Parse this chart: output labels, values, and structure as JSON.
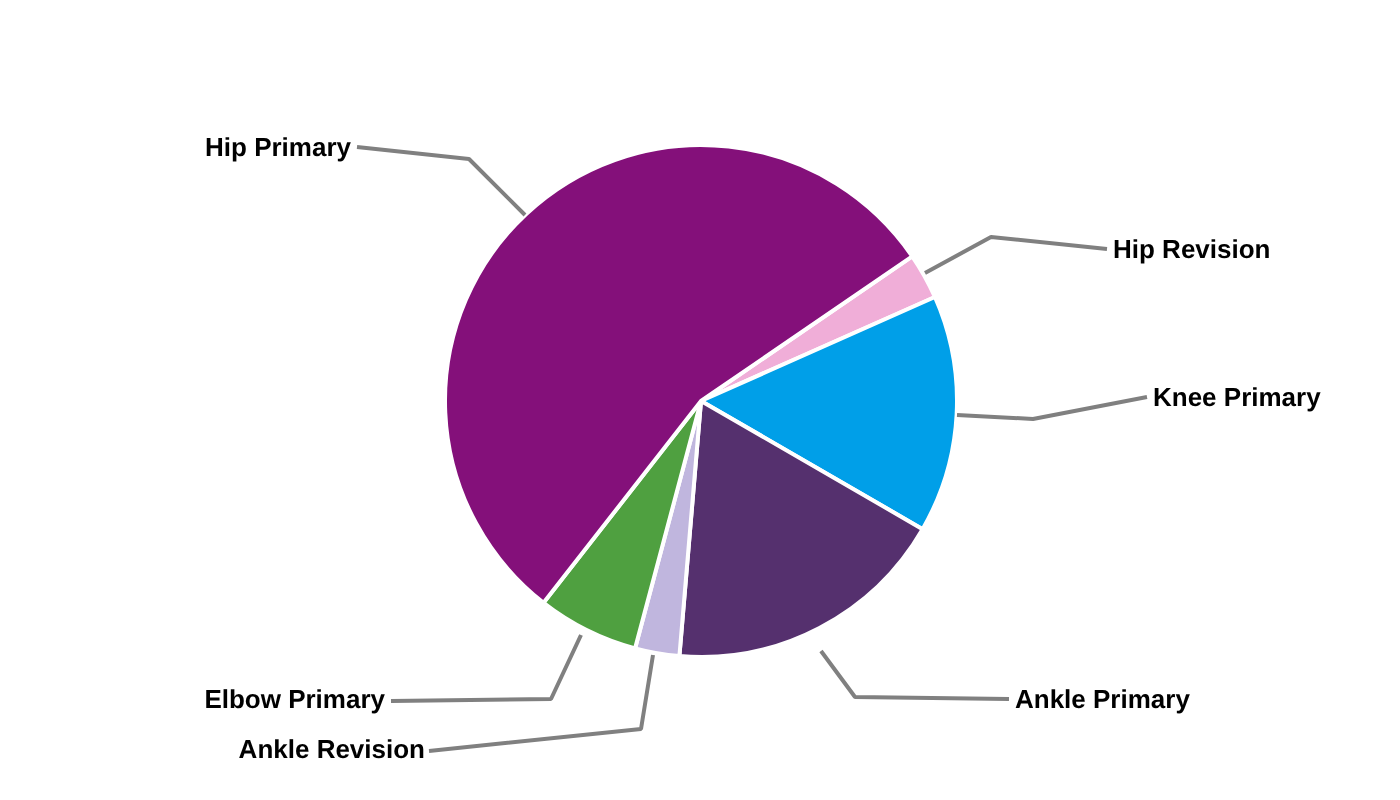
{
  "chart_data": {
    "type": "pie",
    "categories": [
      "Hip Revision",
      "Knee Primary",
      "Ankle Primary",
      "Ankle Revision",
      "Elbow Primary",
      "Hip Primary"
    ],
    "values": [
      2.9,
      15.0,
      18.0,
      2.8,
      6.4,
      54.9
    ],
    "colors": [
      "#f0aed8",
      "#009fe8",
      "#55306e",
      "#c0b6de",
      "#4fa040",
      "#84107a"
    ]
  }
}
